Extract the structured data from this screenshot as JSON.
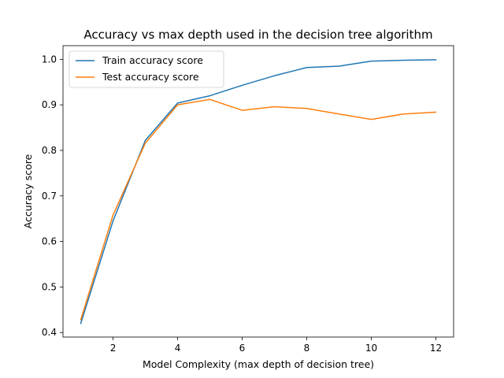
{
  "chart_data": {
    "type": "line",
    "title": "Accuracy vs max depth used in the decision tree algorithm",
    "xlabel": "Model Complexity (max depth of decision tree)",
    "ylabel": "Accuracy score",
    "xlim": [
      0.45,
      12.55
    ],
    "ylim": [
      0.39,
      1.03
    ],
    "xticks": [
      2,
      4,
      6,
      8,
      10,
      12
    ],
    "yticks": [
      0.4,
      0.5,
      0.6,
      0.7,
      0.8,
      0.9,
      1.0
    ],
    "grid": false,
    "legend_position": "upper-left",
    "x": [
      1,
      2,
      3,
      4,
      5,
      6,
      7,
      8,
      9,
      10,
      11,
      12
    ],
    "series": [
      {
        "name": "Train accuracy score",
        "color": "#1f77b4",
        "values": [
          0.42,
          0.645,
          0.822,
          0.904,
          0.92,
          0.943,
          0.964,
          0.982,
          0.985,
          0.996,
          0.998,
          0.999
        ]
      },
      {
        "name": "Test accuracy score",
        "color": "#ff7f0e",
        "values": [
          0.428,
          0.658,
          0.816,
          0.9,
          0.912,
          0.888,
          0.896,
          0.892,
          0.88,
          0.868,
          0.88,
          0.884
        ]
      }
    ]
  }
}
